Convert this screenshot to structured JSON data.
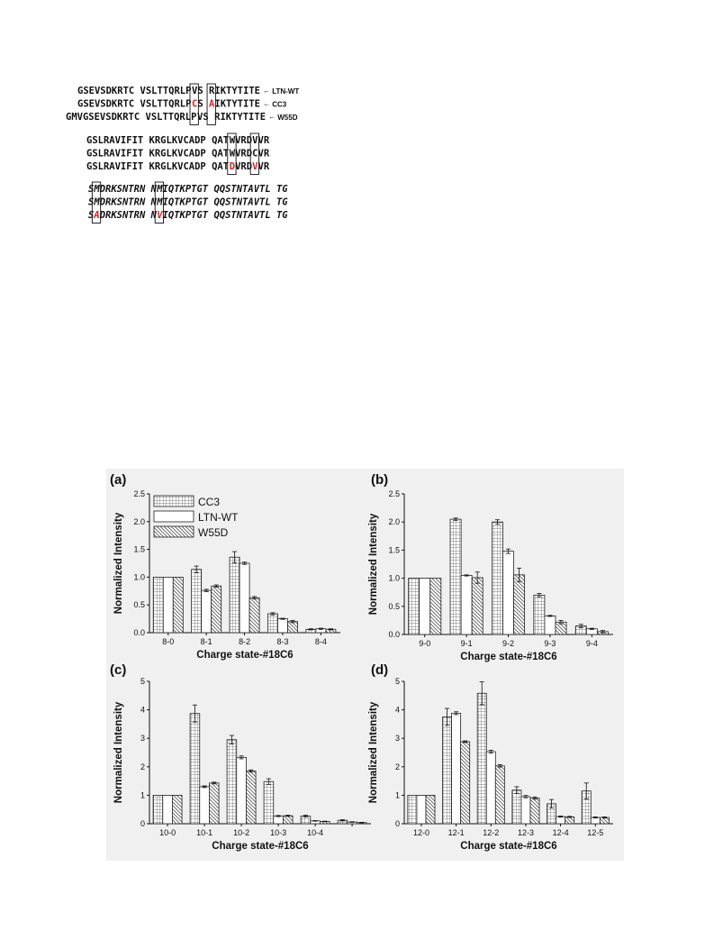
{
  "sequence_alignment": {
    "blocks": [
      {
        "rows": [
          {
            "segments": [
              "GSEVSDKRTC VSLTTQRLP",
              "V",
              " S",
              "R",
              "IKTYTITE"
            ],
            "label": "LTN-WT",
            "red_index": -1
          },
          {
            "segments": [
              "GSEVSDKRTC VSLTTQRLP",
              "C",
              " S",
              "A",
              "IKTYTITE"
            ],
            "label": "CC3",
            "red_index": 1
          },
          {
            "segments": [
              "GMVGSEVSDKRTC VSLTTQRLP",
              "V",
              " S",
              "R",
              "IKTYTITE"
            ],
            "label": "W55D",
            "red_index": -1
          }
        ]
      },
      {
        "rows": [
          {
            "segments": [
              "GSLRAVIFIT KRGLKVCADP QAT",
              "W",
              "VRD",
              "V",
              "VR"
            ]
          },
          {
            "segments": [
              "GSLRAVIFIT KRGLKVCADP QAT",
              "W",
              "VRD",
              "C",
              "VR"
            ]
          },
          {
            "segments": [
              "GSLRAVIFIT KRGLKVCADP QAT",
              "D",
              "VRD",
              "V",
              "VR"
            ]
          }
        ]
      },
      {
        "rows": [
          {
            "segments": [
              "S",
              "M",
              "DRKSNTRN N",
              "M",
              "IQTKPTGT QQSTNTAVTL TG"
            ]
          },
          {
            "segments": [
              "S",
              "M",
              "DRKSNTRN N",
              "M",
              "IQTKPTGT QQSTNTAVTL TG"
            ]
          },
          {
            "segments": [
              "S",
              "A",
              "DRKSNTRN N",
              "V",
              "IQTKPTGT QQSTNTAVTL TG"
            ]
          }
        ]
      }
    ]
  },
  "chart_data": [
    {
      "type": "bar",
      "panel": "(a)",
      "categories": [
        "8-0",
        "8-1",
        "8-2",
        "8-3",
        "8-4"
      ],
      "ylim": [
        0,
        2.5
      ],
      "yticks": [
        "0.0",
        "0.5",
        "1.0",
        "1.5",
        "2.0",
        "2.5"
      ],
      "xlabel": "Charge state-#18C6",
      "ylabel": "Normalized Intensity",
      "legend": "top-left",
      "series": [
        {
          "name": "CC3",
          "values": [
            1.0,
            1.14,
            1.36,
            0.34,
            0.06
          ],
          "errors": [
            0,
            0.06,
            0.1,
            0.02,
            0.01
          ]
        },
        {
          "name": "LTN-WT",
          "values": [
            1.0,
            0.76,
            1.25,
            0.25,
            0.07
          ],
          "errors": [
            0,
            0.02,
            0.02,
            0.01,
            0.01
          ]
        },
        {
          "name": "W55D",
          "values": [
            1.0,
            0.84,
            0.63,
            0.2,
            0.06
          ],
          "errors": [
            0,
            0.02,
            0.02,
            0.02,
            0.01
          ]
        }
      ]
    },
    {
      "type": "bar",
      "panel": "(b)",
      "categories": [
        "9-0",
        "9-1",
        "9-2",
        "9-3",
        "9-4"
      ],
      "ylim": [
        0,
        2.5
      ],
      "yticks": [
        "0.0",
        "0.5",
        "1.0",
        "1.5",
        "2.0",
        "2.5"
      ],
      "xlabel": "Charge state-#18C6",
      "ylabel": "Normalized Intensity",
      "series": [
        {
          "name": "CC3",
          "values": [
            1.0,
            2.05,
            2.0,
            0.7,
            0.15
          ],
          "errors": [
            0,
            0.02,
            0.04,
            0.03,
            0.03
          ]
        },
        {
          "name": "LTN-WT",
          "values": [
            1.0,
            1.05,
            1.48,
            0.33,
            0.1
          ],
          "errors": [
            0,
            0.01,
            0.04,
            0.01,
            0.01
          ]
        },
        {
          "name": "W55D",
          "values": [
            1.0,
            1.01,
            1.06,
            0.22,
            0.05
          ],
          "errors": [
            0,
            0.1,
            0.12,
            0.03,
            0.02
          ]
        }
      ]
    },
    {
      "type": "bar",
      "panel": "(c)",
      "categories": [
        "10-0",
        "10-1",
        "10-2",
        "10-3",
        "10-4",
        ""
      ],
      "ylim": [
        0,
        5
      ],
      "yticks": [
        "0",
        "1",
        "2",
        "3",
        "4",
        "5"
      ],
      "xlabel": "Charge state-#18C6",
      "ylabel": "Normalized Intensity",
      "series": [
        {
          "name": "CC3",
          "values": [
            1.0,
            3.87,
            2.95,
            1.48,
            0.27,
            0.12
          ],
          "errors": [
            0,
            0.3,
            0.15,
            0.1,
            0.03,
            0.02
          ]
        },
        {
          "name": "LTN-WT",
          "values": [
            1.0,
            1.3,
            2.33,
            0.27,
            0.1,
            0.06
          ],
          "errors": [
            0,
            0.03,
            0.05,
            0.02,
            0.01,
            0.01
          ]
        },
        {
          "name": "W55D",
          "values": [
            1.0,
            1.43,
            1.85,
            0.28,
            0.08,
            0.04
          ],
          "errors": [
            0,
            0.03,
            0.04,
            0.02,
            0.01,
            0.01
          ]
        }
      ]
    },
    {
      "type": "bar",
      "panel": "(d)",
      "categories": [
        "12-0",
        "12-1",
        "12-2",
        "12-3",
        "12-4",
        "12-5"
      ],
      "ylim": [
        0,
        5
      ],
      "yticks": [
        "0",
        "1",
        "2",
        "3",
        "4",
        "5"
      ],
      "xlabel": "Charge state-#18C6",
      "ylabel": "Normalized Intensity",
      "series": [
        {
          "name": "CC3",
          "values": [
            1.0,
            3.75,
            4.58,
            1.18,
            0.7,
            1.15
          ],
          "errors": [
            0,
            0.3,
            0.4,
            0.12,
            0.15,
            0.28
          ]
        },
        {
          "name": "LTN-WT",
          "values": [
            1.0,
            3.88,
            2.53,
            0.95,
            0.25,
            0.22
          ],
          "errors": [
            0,
            0.05,
            0.05,
            0.04,
            0.02,
            0.02
          ]
        },
        {
          "name": "W55D",
          "values": [
            1.0,
            2.88,
            2.03,
            0.9,
            0.24,
            0.22
          ],
          "errors": [
            0,
            0.03,
            0.04,
            0.04,
            0.02,
            0.02
          ]
        }
      ]
    }
  ]
}
